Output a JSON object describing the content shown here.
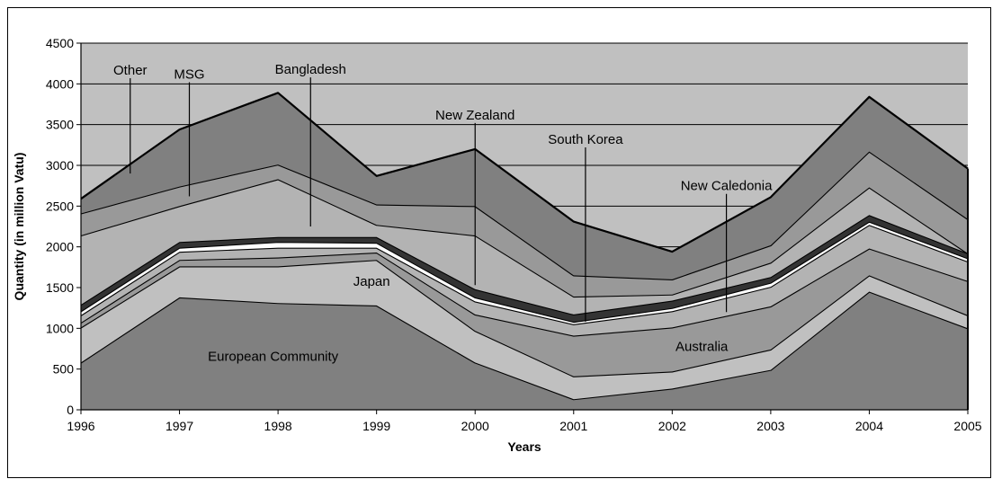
{
  "chart_data": {
    "type": "area",
    "stacked": true,
    "xlabel": "Years",
    "ylabel": "Quantity (in million Vatu)",
    "x": [
      "1996",
      "1997",
      "1998",
      "1999",
      "2000",
      "2001",
      "2002",
      "2003",
      "2004",
      "2005"
    ],
    "ylim": [
      0,
      4500
    ],
    "yticks": [
      0,
      500,
      1000,
      1500,
      2000,
      2500,
      3000,
      3500,
      4000,
      4500
    ],
    "grid": true,
    "plot_background": "#c0c0c0",
    "series": [
      {
        "name": "European Community",
        "values": [
          580,
          1380,
          1310,
          1280,
          580,
          130,
          260,
          490,
          1450,
          1000
        ],
        "color": "#808080"
      },
      {
        "name": "Australia",
        "values": [
          430,
          380,
          450,
          560,
          390,
          280,
          210,
          250,
          200,
          160
        ],
        "color": "#c0c0c0"
      },
      {
        "name": "",
        "values": [
          60,
          80,
          110,
          90,
          200,
          500,
          540,
          530,
          330,
          420
        ],
        "color": "#999999"
      },
      {
        "name": "Japan",
        "values": [
          90,
          100,
          120,
          60,
          160,
          140,
          200,
          240,
          290,
          240
        ],
        "color": "#b3b3b3"
      },
      {
        "name": "",
        "values": [
          50,
          50,
          70,
          60,
          50,
          30,
          40,
          50,
          40,
          40
        ],
        "color": "#ffffff"
      },
      {
        "name": "",
        "values": [
          80,
          70,
          60,
          70,
          100,
          90,
          90,
          70,
          80,
          60
        ],
        "color": "#333333"
      },
      {
        "name": "",
        "values": [
          850,
          440,
          710,
          150,
          660,
          220,
          75,
          175,
          340,
          0
        ],
        "color": "#b3b3b3"
      },
      {
        "name": "",
        "values": [
          270,
          240,
          180,
          250,
          360,
          260,
          185,
          215,
          440,
          420
        ],
        "color": "#999999"
      },
      {
        "name": "",
        "values": [
          180,
          700,
          880,
          350,
          700,
          660,
          340,
          590,
          670,
          620
        ],
        "color": "#808080"
      }
    ],
    "annotations": [
      {
        "text": "Other",
        "x": 1996.5,
        "line_from": 4070,
        "line_to": 2900
      },
      {
        "text": "MSG",
        "x": 1997.1,
        "line_from": 4020,
        "line_to": 2620
      },
      {
        "text": "Bangladesh",
        "x": 1998.33,
        "line_from": 4080,
        "line_to": 2250
      },
      {
        "text": "New Zealand",
        "x": 2000.0,
        "line_from": 3520,
        "line_to": 1530
      },
      {
        "text": "South Korea",
        "x": 2001.12,
        "line_from": 3220,
        "line_to": 1080
      },
      {
        "text": "New Caledonia",
        "x": 2002.55,
        "line_from": 2650,
        "line_to": 1200
      },
      {
        "text": "Japan",
        "x": 1998.95,
        "y": 1520
      },
      {
        "text": "Australia",
        "x": 2002.3,
        "y": 720
      },
      {
        "text": "European Community",
        "x": 1997.95,
        "y": 600
      }
    ]
  }
}
